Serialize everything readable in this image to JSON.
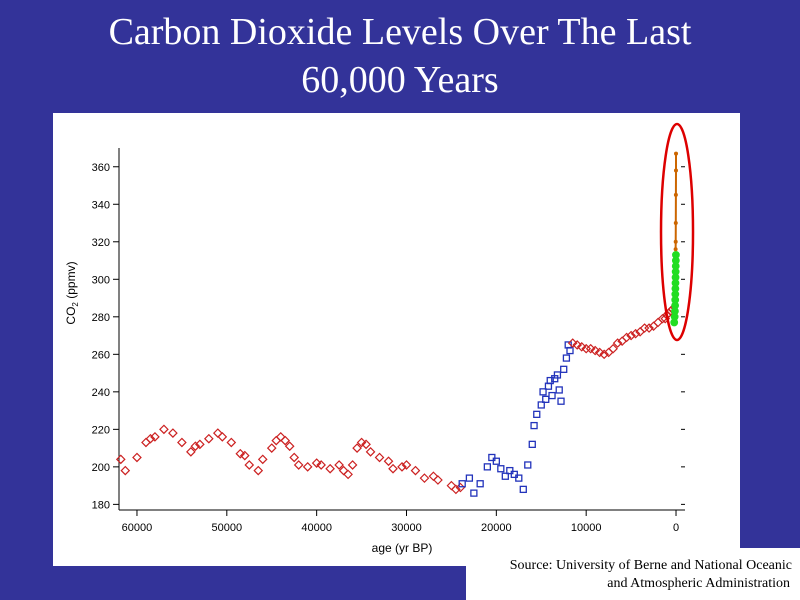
{
  "slide": {
    "title_line1": "Carbon Dioxide Levels Over The Last",
    "title_line2": "60,000 Years",
    "source_line1": "Source: University of Berne and National Oceanic",
    "source_line2": "and Atmospheric  Administration"
  },
  "colors": {
    "background": "#333399",
    "series_ice_core_early": "#cc2222",
    "series_ice_core_mid": "#2233bb",
    "series_ice_core_recent": "#cc2222",
    "series_firn": "#22dd22",
    "series_atmospheric": "#cc6600",
    "highlight_ellipse": "#dd0000"
  },
  "chart_data": {
    "type": "scatter",
    "xlabel": "age (yr BP)",
    "ylabel_main": "CO",
    "ylabel_sub": "2",
    "ylabel_unit": " (ppmv)",
    "xlim": [
      62000,
      -1000
    ],
    "ylim": [
      177,
      370
    ],
    "x_ticks": [
      60000,
      50000,
      40000,
      30000,
      20000,
      10000,
      0
    ],
    "x_tick_labels": [
      "60000",
      "50000",
      "40000",
      "30000",
      "20000",
      "10000",
      "0"
    ],
    "y_ticks": [
      180,
      200,
      220,
      240,
      260,
      280,
      300,
      320,
      340,
      360
    ],
    "y_tick_labels": [
      "180",
      "200",
      "220",
      "240",
      "260",
      "280",
      "300",
      "320",
      "340",
      "360"
    ],
    "series": [
      {
        "marker": "diamond",
        "points": [
          [
            61800,
            204
          ],
          [
            61300,
            198
          ],
          [
            60000,
            205
          ],
          [
            59000,
            213
          ],
          [
            58500,
            215
          ],
          [
            58000,
            216
          ],
          [
            57000,
            220
          ],
          [
            56000,
            218
          ],
          [
            55000,
            213
          ],
          [
            54000,
            208
          ],
          [
            53500,
            211
          ],
          [
            53000,
            212
          ],
          [
            52000,
            215
          ],
          [
            51000,
            218
          ],
          [
            50500,
            216
          ],
          [
            49500,
            213
          ],
          [
            48500,
            207
          ],
          [
            48000,
            206
          ],
          [
            47500,
            201
          ],
          [
            46500,
            198
          ],
          [
            46000,
            204
          ],
          [
            45000,
            210
          ],
          [
            44500,
            214
          ],
          [
            44000,
            216
          ],
          [
            43500,
            214
          ],
          [
            43000,
            211
          ],
          [
            42500,
            205
          ],
          [
            42000,
            201
          ],
          [
            41000,
            200
          ],
          [
            40000,
            202
          ],
          [
            39500,
            201
          ],
          [
            38500,
            199
          ],
          [
            37500,
            201
          ],
          [
            37000,
            198
          ],
          [
            36500,
            196
          ],
          [
            36000,
            201
          ],
          [
            35500,
            210
          ],
          [
            35000,
            213
          ],
          [
            34500,
            212
          ],
          [
            34000,
            208
          ],
          [
            33000,
            205
          ],
          [
            32000,
            203
          ],
          [
            31500,
            199
          ],
          [
            30500,
            200
          ],
          [
            30000,
            201
          ],
          [
            29000,
            198
          ],
          [
            28000,
            194
          ],
          [
            27000,
            195
          ],
          [
            26500,
            193
          ],
          [
            25000,
            190
          ],
          [
            24500,
            188
          ],
          [
            24000,
            189
          ]
        ]
      },
      {
        "marker": "square",
        "points": [
          [
            23800,
            191
          ],
          [
            23000,
            194
          ],
          [
            22500,
            186
          ],
          [
            21800,
            191
          ],
          [
            21000,
            200
          ],
          [
            20500,
            205
          ],
          [
            20000,
            203
          ],
          [
            19500,
            199
          ],
          [
            19000,
            195
          ],
          [
            18500,
            198
          ],
          [
            18000,
            196
          ],
          [
            17500,
            194
          ],
          [
            17000,
            188
          ],
          [
            16500,
            201
          ],
          [
            16000,
            212
          ],
          [
            15800,
            222
          ],
          [
            15500,
            228
          ],
          [
            15000,
            233
          ],
          [
            14800,
            240
          ],
          [
            14500,
            236
          ],
          [
            14200,
            243
          ],
          [
            14000,
            246
          ],
          [
            13800,
            238
          ],
          [
            13500,
            247
          ],
          [
            13200,
            249
          ],
          [
            13000,
            241
          ],
          [
            12800,
            235
          ],
          [
            12500,
            252
          ],
          [
            12200,
            258
          ],
          [
            12000,
            265
          ],
          [
            11800,
            262
          ]
        ]
      },
      {
        "marker": "diamond",
        "points": [
          [
            11500,
            266
          ],
          [
            11000,
            265
          ],
          [
            10500,
            264
          ],
          [
            10000,
            263
          ],
          [
            9500,
            263
          ],
          [
            9000,
            262
          ],
          [
            8500,
            261
          ],
          [
            8000,
            260
          ],
          [
            7500,
            261
          ],
          [
            7000,
            263
          ],
          [
            6500,
            266
          ],
          [
            6000,
            267
          ],
          [
            5500,
            269
          ],
          [
            5000,
            270
          ],
          [
            4500,
            271
          ],
          [
            4000,
            272
          ],
          [
            3500,
            274
          ],
          [
            3000,
            274
          ],
          [
            2500,
            275
          ],
          [
            2000,
            277
          ],
          [
            1500,
            279
          ],
          [
            1200,
            279
          ],
          [
            1000,
            281
          ],
          [
            800,
            282
          ],
          [
            600,
            283
          ],
          [
            400,
            284
          ]
        ]
      },
      {
        "marker": "circle",
        "points": [
          [
            200,
            277
          ],
          [
            150,
            280
          ],
          [
            120,
            283
          ],
          [
            100,
            286
          ],
          [
            90,
            289
          ],
          [
            80,
            292
          ],
          [
            70,
            295
          ],
          [
            60,
            298
          ],
          [
            50,
            301
          ],
          [
            40,
            304
          ],
          [
            30,
            307
          ],
          [
            20,
            310
          ],
          [
            10,
            313
          ]
        ]
      },
      {
        "marker": "line",
        "points": [
          [
            45,
            316
          ],
          [
            35,
            320
          ],
          [
            25,
            330
          ],
          [
            15,
            345
          ],
          [
            5,
            358
          ],
          [
            0,
            367
          ]
        ]
      }
    ],
    "highlight": "red ellipse around the most recent values near year 0"
  }
}
